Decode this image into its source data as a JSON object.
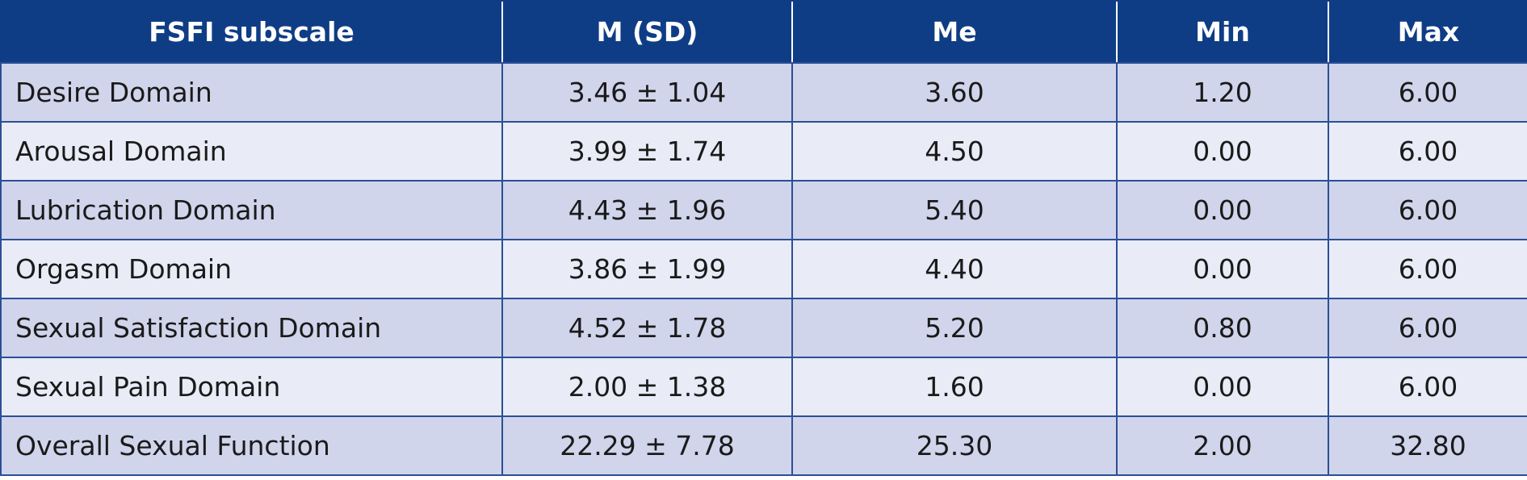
{
  "table": {
    "headers": [
      "FSFI subscale",
      "M (SD)",
      "Me",
      "Min",
      "Max"
    ],
    "rows": [
      [
        "Desire Domain",
        "3.46 ± 1.04",
        "3.60",
        "1.20",
        "6.00"
      ],
      [
        "Arousal Domain",
        "3.99 ± 1.74",
        "4.50",
        "0.00",
        "6.00"
      ],
      [
        "Lubrication Domain",
        "4.43 ± 1.96",
        "5.40",
        "0.00",
        "6.00"
      ],
      [
        "Orgasm Domain",
        "3.86 ± 1.99",
        "4.40",
        "0.00",
        "6.00"
      ],
      [
        "Sexual Satisfaction Domain",
        "4.52 ± 1.78",
        "5.20",
        "0.80",
        "6.00"
      ],
      [
        "Sexual Pain Domain",
        "2.00 ± 1.38",
        "1.60",
        "0.00",
        "6.00"
      ],
      [
        "Overall Sexual Function",
        "22.29 ± 7.78",
        "25.30",
        "2.00",
        "32.80"
      ]
    ]
  },
  "colors": {
    "header_bg": "#0f3d85",
    "header_text": "#ffffff",
    "row_odd_bg": "#d0d5ec",
    "row_even_bg": "#e9ebf6",
    "border": "#2b4f96",
    "text": "#1a1a1a"
  }
}
